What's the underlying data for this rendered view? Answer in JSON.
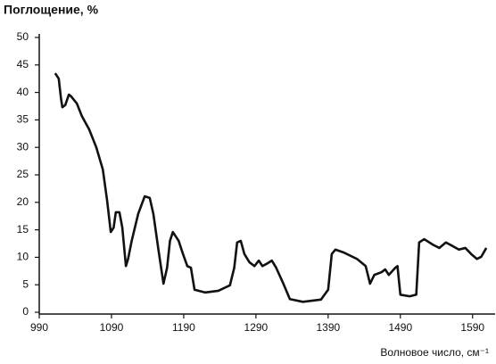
{
  "chart_data": {
    "type": "line",
    "title": "Поглощение, %",
    "x_label": "Волновое число, см⁻¹",
    "x": [
      1012,
      1017,
      1020,
      1022,
      1026,
      1031,
      1034,
      1042,
      1049,
      1059,
      1069,
      1078,
      1084,
      1089,
      1093,
      1096,
      1101,
      1105,
      1110,
      1113,
      1118,
      1127,
      1136,
      1143,
      1148,
      1155,
      1162,
      1167,
      1171,
      1175,
      1183,
      1189,
      1195,
      1200,
      1205,
      1220,
      1238,
      1254,
      1260,
      1264,
      1269,
      1274,
      1281,
      1288,
      1294,
      1299,
      1306,
      1312,
      1318,
      1328,
      1337,
      1355,
      1380,
      1390,
      1395,
      1400,
      1411,
      1430,
      1442,
      1448,
      1454,
      1464,
      1469,
      1474,
      1483,
      1486,
      1490,
      1503,
      1512,
      1516,
      1523,
      1535,
      1544,
      1553,
      1563,
      1571,
      1580,
      1588,
      1596,
      1602,
      1609
    ],
    "series": [
      {
        "color": "#111111",
        "values": [
          43.5,
          42.5,
          39,
          37.3,
          37.7,
          39.6,
          39.3,
          38,
          35.7,
          33.3,
          30,
          26,
          20.3,
          14.6,
          15.4,
          18.2,
          18.2,
          15.4,
          8.4,
          9.7,
          13,
          17.9,
          21.1,
          20.8,
          17.9,
          11.4,
          5.2,
          8.1,
          13,
          14.6,
          13,
          10.6,
          8.4,
          8.1,
          4.1,
          3.6,
          3.9,
          4.9,
          8.1,
          12.7,
          13,
          10.6,
          9.1,
          8.4,
          9.4,
          8.4,
          8.9,
          9.4,
          8.1,
          5.2,
          2.4,
          1.9,
          2.3,
          4.1,
          10.6,
          11.4,
          10.9,
          9.7,
          8.4,
          5.2,
          6.8,
          7.3,
          7.8,
          6.8,
          8.1,
          8.4,
          3.2,
          2.9,
          3.2,
          12.7,
          13.3,
          12.3,
          11.7,
          12.7,
          12,
          11.4,
          11.7,
          10.6,
          9.7,
          10.1,
          11.7
        ]
      }
    ],
    "xlim": [
      990,
      1615
    ],
    "xticks": [
      990,
      1090,
      1190,
      1290,
      1390,
      1490,
      1590
    ],
    "ylim": [
      0,
      50
    ],
    "yticks": [
      0,
      5,
      10,
      15,
      20,
      25,
      30,
      35,
      40,
      45,
      50
    ],
    "grid": false
  }
}
